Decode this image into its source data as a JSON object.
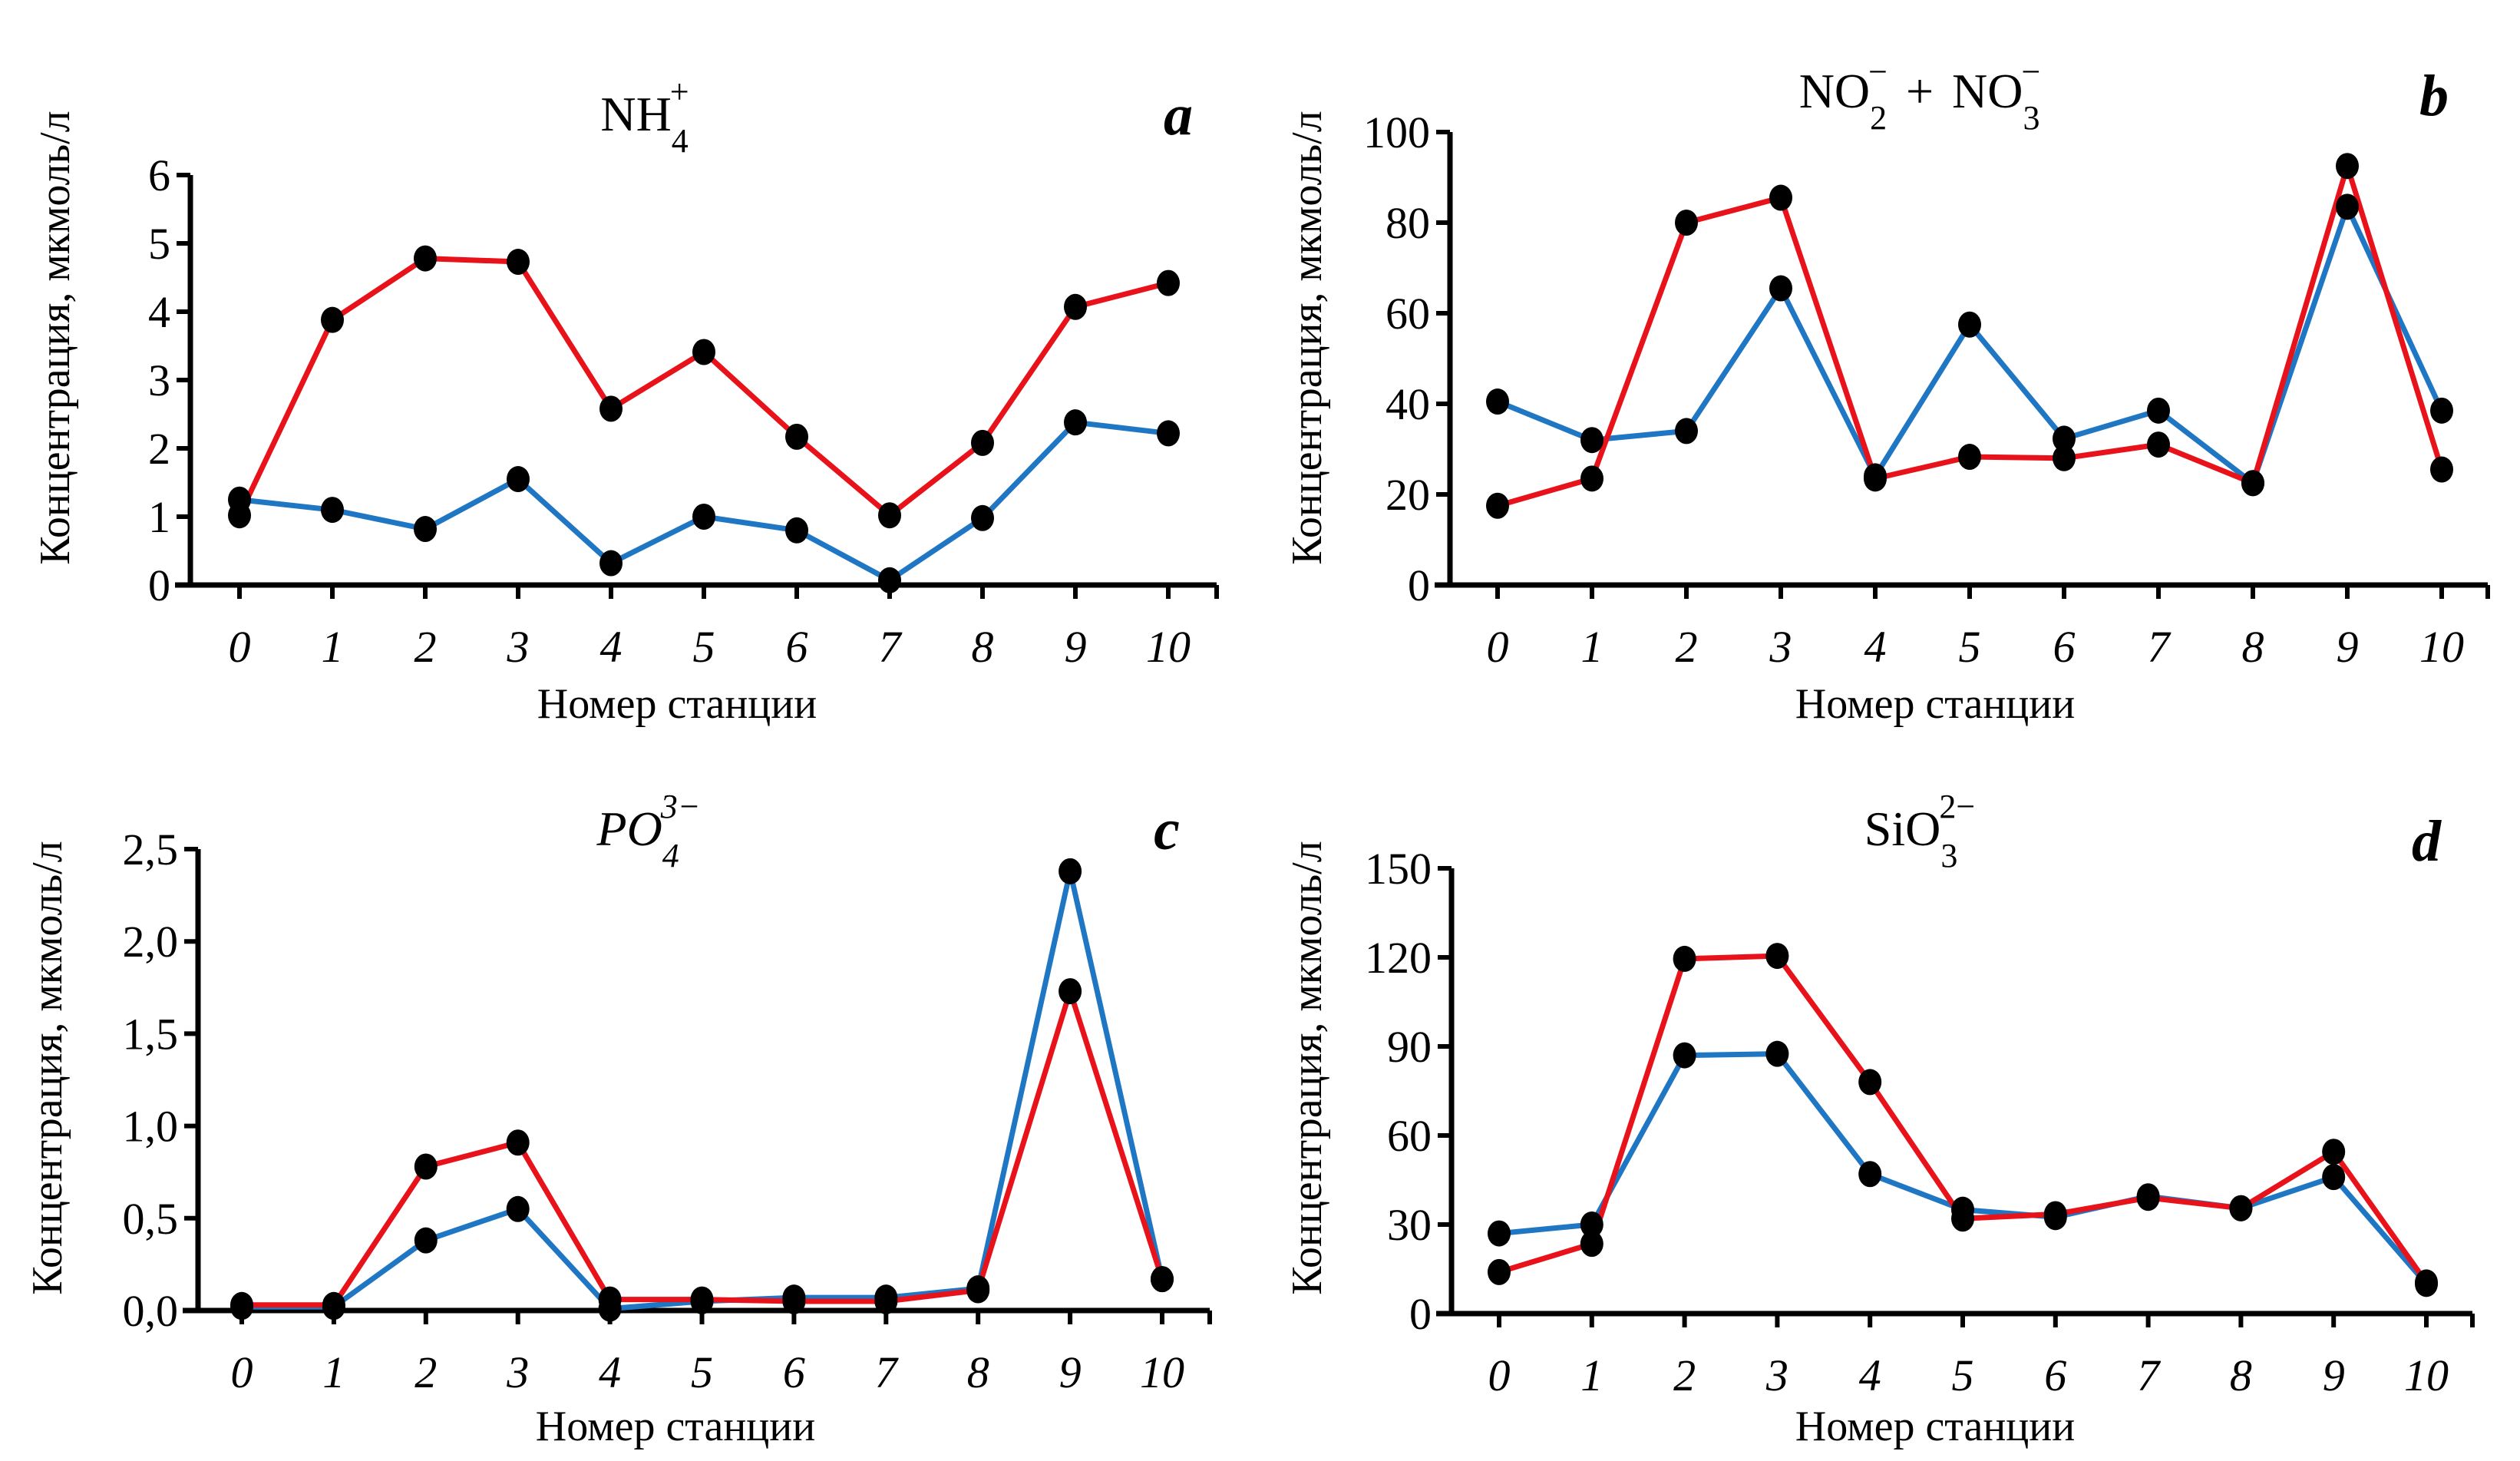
{
  "chart_data": [
    {
      "type": "line",
      "panel": "a",
      "title": "NH4+",
      "title_parts": {
        "base": "NH",
        "sub": "4",
        "sup": "+"
      },
      "xlabel": "Номер станции",
      "ylabel": "Концентрация, мкмоль/л",
      "x": [
        0,
        1,
        2,
        3,
        4,
        5,
        6,
        7,
        8,
        9,
        10
      ],
      "ylim": [
        0,
        6
      ],
      "yticks": [
        0,
        1,
        2,
        3,
        4,
        5,
        6
      ],
      "ytick_labels": [
        "0",
        "1",
        "2",
        "3",
        "4",
        "5",
        "6"
      ],
      "series": [
        {
          "name": "blue",
          "color": "#1f77c4",
          "values": [
            1.25,
            1.1,
            0.82,
            1.55,
            0.32,
            1.0,
            0.8,
            0.07,
            0.98,
            2.38,
            2.22
          ]
        },
        {
          "name": "red",
          "color": "#e8121b",
          "values": [
            1.02,
            3.88,
            4.78,
            4.73,
            2.58,
            3.41,
            2.17,
            1.02,
            2.08,
            4.07,
            4.42
          ]
        }
      ]
    },
    {
      "type": "line",
      "panel": "b",
      "title": "NO2- + NO3-",
      "title_parts": {
        "base1": "NO",
        "sub1": "2",
        "sup1": "−",
        "plus": "+",
        "base2": "NO",
        "sub2": "3",
        "sup2": "−"
      },
      "xlabel": "Номер станции",
      "ylabel": "Концентрация, мкмоль/л",
      "x": [
        0,
        1,
        2,
        3,
        4,
        5,
        6,
        7,
        8,
        9,
        10
      ],
      "ylim": [
        0,
        100
      ],
      "yticks": [
        0,
        20,
        40,
        60,
        80,
        100
      ],
      "ytick_labels": [
        "0",
        "20",
        "40",
        "60",
        "80",
        "100"
      ],
      "series": [
        {
          "name": "blue",
          "color": "#1f77c4",
          "values": [
            40.5,
            32,
            34,
            65.5,
            24,
            57.5,
            32.3,
            38.5,
            22.5,
            83.5,
            38.5
          ]
        },
        {
          "name": "red",
          "color": "#e8121b",
          "values": [
            17.5,
            23.5,
            80,
            85.5,
            23.5,
            28.3,
            28,
            31,
            22.5,
            92.5,
            25.5
          ]
        }
      ]
    },
    {
      "type": "line",
      "panel": "c",
      "title": "PO4 3-",
      "title_parts": {
        "base": "PO",
        "sub": "4",
        "sup": "3−"
      },
      "xlabel": "Номер станции",
      "ylabel": "Концентрация, мкмоль/л",
      "x": [
        0,
        1,
        2,
        3,
        4,
        5,
        6,
        7,
        8,
        9,
        10
      ],
      "ylim": [
        0,
        2.5
      ],
      "yticks": [
        0,
        0.5,
        1.0,
        1.5,
        2.0,
        2.5
      ],
      "ytick_labels": [
        "0,0",
        "0,5",
        "1,0",
        "1,5",
        "2,0",
        "2,5"
      ],
      "series": [
        {
          "name": "blue",
          "color": "#1f77c4",
          "values": [
            0.02,
            0.02,
            0.38,
            0.55,
            0.01,
            0.05,
            0.07,
            0.07,
            0.12,
            2.38,
            0.17
          ]
        },
        {
          "name": "red",
          "color": "#e8121b",
          "values": [
            0.03,
            0.03,
            0.78,
            0.91,
            0.06,
            0.06,
            0.05,
            0.05,
            0.11,
            1.73,
            0.17
          ]
        }
      ]
    },
    {
      "type": "line",
      "panel": "d",
      "title": "SiO3 2-",
      "title_parts": {
        "base": "SiO",
        "sub": "3",
        "sup": "2−"
      },
      "xlabel": "Номер станции",
      "ylabel": "Концентрация, мкмоль/л",
      "x": [
        0,
        1,
        2,
        3,
        4,
        5,
        6,
        7,
        8,
        9,
        10
      ],
      "ylim": [
        0,
        150
      ],
      "yticks": [
        0,
        30,
        60,
        90,
        120,
        150
      ],
      "ytick_labels": [
        "0",
        "30",
        "60",
        "90",
        "120",
        "150"
      ],
      "series": [
        {
          "name": "blue",
          "color": "#1f77c4",
          "values": [
            27,
            30,
            87,
            87.5,
            47,
            35,
            32.5,
            39.5,
            35.5,
            46,
            10
          ]
        },
        {
          "name": "red",
          "color": "#e8121b",
          "values": [
            14,
            23.5,
            119.5,
            120.5,
            78,
            32,
            33.5,
            39,
            35.5,
            54.5,
            10.5
          ]
        }
      ]
    }
  ],
  "panels": [
    {
      "letter": "a"
    },
    {
      "letter": "b"
    },
    {
      "letter": "c"
    },
    {
      "letter": "d"
    }
  ],
  "marker_color": "#000000",
  "axis_color": "#000000"
}
